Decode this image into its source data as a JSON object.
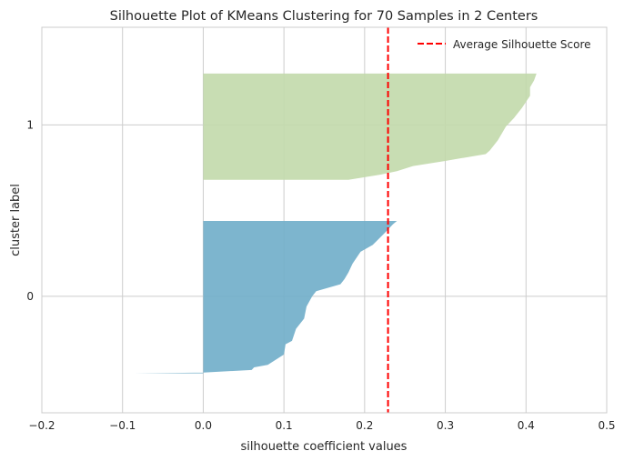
{
  "chart_data": {
    "type": "area",
    "title": "Silhouette Plot of KMeans Clustering for 70 Samples in 2 Centers",
    "xlabel": "silhouette coefficient values",
    "ylabel": "cluster label",
    "xlim": [
      -0.2,
      0.5
    ],
    "ylim": [
      -0.68,
      1.57
    ],
    "x_ticks": [
      "−0.2",
      "−0.1",
      "0.0",
      "0.1",
      "0.2",
      "0.3",
      "0.4",
      "0.5"
    ],
    "x_tick_values": [
      -0.2,
      -0.1,
      0.0,
      0.1,
      0.2,
      0.3,
      0.4,
      0.5
    ],
    "y_ticks": [
      "0",
      "1"
    ],
    "y_tick_values": [
      0,
      1
    ],
    "grid": true,
    "legend_position": "top-right",
    "average_silhouette_score": 0.229,
    "average_line": {
      "label": "Average Silhouette Score",
      "color": "#ff0000"
    },
    "series": [
      {
        "name": "0",
        "color": "#6fadc9",
        "y_range": [
          -0.45,
          0.44
        ],
        "profile": [
          [
            -0.085,
            -0.45
          ],
          [
            0.0,
            -0.445
          ],
          [
            0.06,
            -0.43
          ],
          [
            0.063,
            -0.415
          ],
          [
            0.08,
            -0.4
          ],
          [
            0.1,
            -0.34
          ],
          [
            0.102,
            -0.28
          ],
          [
            0.11,
            -0.26
          ],
          [
            0.115,
            -0.19
          ],
          [
            0.125,
            -0.13
          ],
          [
            0.128,
            -0.06
          ],
          [
            0.135,
            -0.0
          ],
          [
            0.14,
            0.03
          ],
          [
            0.17,
            0.07
          ],
          [
            0.175,
            0.1
          ],
          [
            0.18,
            0.14
          ],
          [
            0.185,
            0.19
          ],
          [
            0.195,
            0.26
          ],
          [
            0.21,
            0.3
          ],
          [
            0.225,
            0.37
          ],
          [
            0.235,
            0.42
          ],
          [
            0.24,
            0.44
          ]
        ]
      },
      {
        "name": "1",
        "color": "#c2d9ab",
        "y_range": [
          0.68,
          1.3
        ],
        "profile": [
          [
            0.18,
            0.68
          ],
          [
            0.22,
            0.71
          ],
          [
            0.24,
            0.73
          ],
          [
            0.26,
            0.76
          ],
          [
            0.3,
            0.79
          ],
          [
            0.35,
            0.83
          ],
          [
            0.355,
            0.85
          ],
          [
            0.365,
            0.91
          ],
          [
            0.37,
            0.95
          ],
          [
            0.375,
            0.99
          ],
          [
            0.385,
            1.04
          ],
          [
            0.395,
            1.1
          ],
          [
            0.405,
            1.17
          ],
          [
            0.405,
            1.22
          ],
          [
            0.41,
            1.26
          ],
          [
            0.413,
            1.3
          ]
        ]
      }
    ]
  }
}
